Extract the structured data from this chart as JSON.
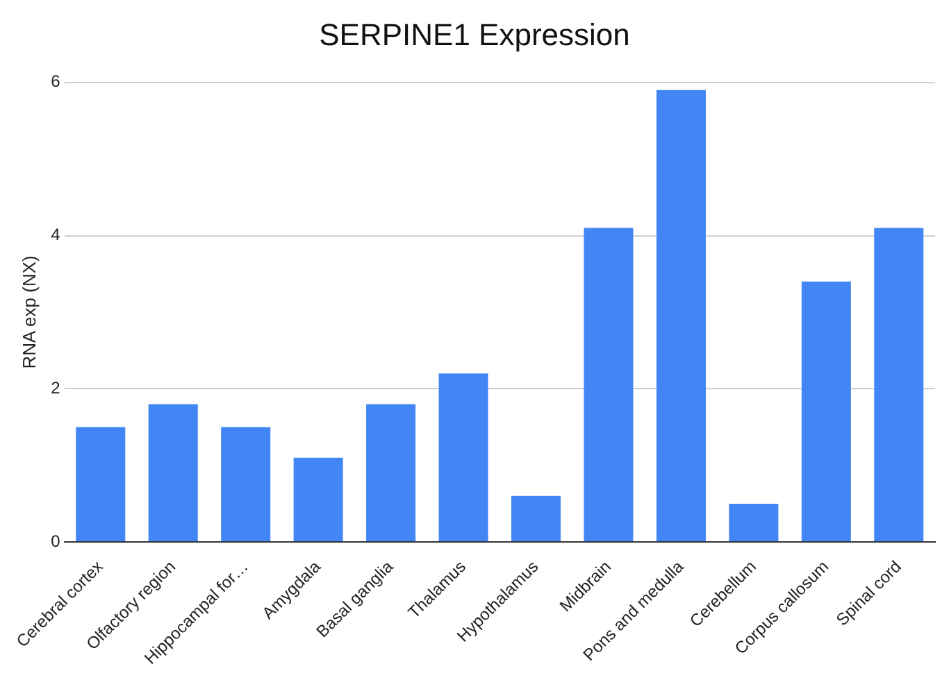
{
  "chart_data": {
    "type": "bar",
    "title": "SERPINE1 Expression",
    "ylabel": "RNA exp (NX)",
    "categories": [
      "Cerebral cortex",
      "Olfactory region",
      "Hippocampal for…",
      "Amygdala",
      "Basal ganglia",
      "Thalamus",
      "Hypothalamus",
      "Midbrain",
      "Pons and medulla",
      "Cerebellum",
      "Corpus callosum",
      "Spinal cord"
    ],
    "values": [
      1.5,
      1.8,
      1.5,
      1.1,
      1.8,
      2.2,
      0.6,
      4.1,
      5.9,
      0.5,
      3.4,
      4.1
    ],
    "color": "#4285f4",
    "ylim": [
      0,
      6
    ],
    "yticks": [
      0,
      2,
      4,
      6
    ],
    "grid": "y",
    "legend": false
  }
}
